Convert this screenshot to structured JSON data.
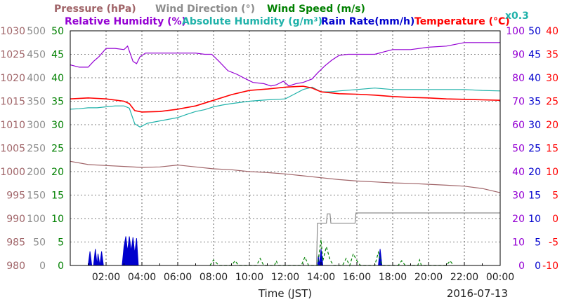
{
  "chart_data": {
    "type": "line",
    "date": "2016-07-13",
    "xlabel": "Time (JST)",
    "legend": {
      "row1": [
        {
          "key": "pressure",
          "label": "Pressure (hPa)",
          "color": "#a06468"
        },
        {
          "key": "wind_dir",
          "label": "Wind Direction (°)",
          "color": "#8c8c8c"
        },
        {
          "key": "wind_speed",
          "label": "Wind Speed (m/s)",
          "color": "#008000"
        }
      ],
      "row2": [
        {
          "key": "rh",
          "label": "Relative Humidity (%)",
          "color": "#9400d3"
        },
        {
          "key": "ah",
          "label": "Absolute Humidity (g/m³)",
          "color": "#20b2aa"
        },
        {
          "key": "rain",
          "label": "Rain Rate(mm/h)",
          "color": "#0000cd"
        },
        {
          "key": "temp",
          "label": "Temperature (°C)",
          "color": "#ff0000"
        },
        {
          "key": "factor",
          "label": "x0.3",
          "color": "#20b2aa"
        }
      ]
    },
    "x_ticks": [
      "02:00",
      "04:00",
      "06:00",
      "08:00",
      "10:00",
      "12:00",
      "14:00",
      "16:00",
      "18:00",
      "20:00",
      "22:00",
      "00:00"
    ],
    "xlim": [
      0,
      24
    ],
    "left_axes": [
      {
        "name": "pressure",
        "color": "#a06468",
        "ticks": [
          "1030",
          "1025",
          "1020",
          "1015",
          "1010",
          "1005",
          "1000",
          "995",
          "990",
          "985",
          "980"
        ]
      },
      {
        "name": "wind_dir",
        "color": "#8c8c8c",
        "ticks": [
          "500",
          "450",
          "400",
          "350",
          "300",
          "250",
          "200",
          "150",
          "100",
          "50",
          "0"
        ]
      },
      {
        "name": "wind_speed",
        "color": "#008000",
        "ticks": [
          "50",
          "45",
          "40",
          "35",
          "30",
          "25",
          "20",
          "15",
          "10",
          "5",
          "0"
        ]
      }
    ],
    "right_axes": [
      {
        "name": "rh",
        "color": "#9400d3",
        "ticks": [
          "100",
          "90",
          "80",
          "70",
          "60",
          "50",
          "40",
          "30",
          "20",
          "10",
          "0"
        ]
      },
      {
        "name": "rain_ah",
        "color": "#0000cd",
        "ticks": [
          "50",
          "45",
          "40",
          "35",
          "30",
          "25",
          "20",
          "15",
          "10",
          "5",
          "0"
        ]
      },
      {
        "name": "temp",
        "color": "#ff0000",
        "ticks": [
          "40",
          "35",
          "30",
          "25",
          "20",
          "15",
          "10",
          "5",
          "0",
          "-5",
          "-10"
        ]
      }
    ],
    "series": [
      {
        "name": "Pressure (hPa)",
        "key": "pressure",
        "color": "#a06468",
        "range": [
          980,
          1030
        ],
        "points": [
          [
            0,
            1002.2
          ],
          [
            1,
            1001.5
          ],
          [
            2,
            1001.3
          ],
          [
            3,
            1001.1
          ],
          [
            4,
            1000.9
          ],
          [
            5,
            1001.0
          ],
          [
            6,
            1001.4
          ],
          [
            7,
            1001.0
          ],
          [
            8,
            1000.6
          ],
          [
            9,
            1000.4
          ],
          [
            10,
            1000.0
          ],
          [
            11,
            999.8
          ],
          [
            12,
            999.5
          ],
          [
            13,
            999.1
          ],
          [
            14,
            998.7
          ],
          [
            15,
            998.3
          ],
          [
            16,
            998.0
          ],
          [
            17,
            997.8
          ],
          [
            18,
            997.6
          ],
          [
            19,
            997.5
          ],
          [
            20,
            997.3
          ],
          [
            21,
            997.1
          ],
          [
            22,
            996.9
          ],
          [
            23,
            996.4
          ],
          [
            24,
            995.5
          ]
        ]
      },
      {
        "name": "Wind Direction (°)",
        "key": "wind_dir",
        "color": "#8c8c8c",
        "range": [
          0,
          500
        ],
        "step": true,
        "points": [
          [
            13.75,
            0
          ],
          [
            13.8,
            90
          ],
          [
            14.3,
            90
          ],
          [
            14.35,
            110
          ],
          [
            14.5,
            110
          ],
          [
            14.55,
            90
          ],
          [
            15.9,
            90
          ],
          [
            15.95,
            112
          ],
          [
            24,
            112
          ]
        ]
      },
      {
        "name": "Wind Speed (m/s)",
        "key": "wind_speed",
        "color": "#008000",
        "range": [
          0,
          50
        ],
        "dashed": true,
        "points": [
          [
            7.8,
            0
          ],
          [
            8.0,
            1.2
          ],
          [
            8.3,
            0
          ],
          [
            9.0,
            0
          ],
          [
            9.2,
            1.0
          ],
          [
            9.4,
            0
          ],
          [
            10.4,
            0
          ],
          [
            10.6,
            1.5
          ],
          [
            10.8,
            0
          ],
          [
            11.4,
            0
          ],
          [
            11.5,
            1.0
          ],
          [
            11.6,
            0
          ],
          [
            12.9,
            0
          ],
          [
            13.1,
            1.8
          ],
          [
            13.3,
            0
          ],
          [
            13.8,
            0
          ],
          [
            14.0,
            5.5
          ],
          [
            14.1,
            1.0
          ],
          [
            14.3,
            4.0
          ],
          [
            14.5,
            1.2
          ],
          [
            14.7,
            0
          ],
          [
            15.2,
            0
          ],
          [
            15.4,
            1.5
          ],
          [
            15.6,
            0
          ],
          [
            15.8,
            2.5
          ],
          [
            16.0,
            1.0
          ],
          [
            16.2,
            0
          ],
          [
            17.0,
            0
          ],
          [
            17.2,
            2.8
          ],
          [
            17.4,
            0
          ],
          [
            18.3,
            0
          ],
          [
            18.5,
            1.0
          ],
          [
            18.7,
            0
          ],
          [
            19.4,
            0
          ],
          [
            19.5,
            1.2
          ],
          [
            19.6,
            0
          ],
          [
            21.0,
            0
          ],
          [
            21.2,
            1.0
          ],
          [
            21.4,
            0
          ]
        ]
      },
      {
        "name": "Relative Humidity (%)",
        "key": "rh",
        "color": "#9400d3",
        "range": [
          0,
          100
        ],
        "points": [
          [
            0,
            85.5
          ],
          [
            0.5,
            84.5
          ],
          [
            1,
            84.5
          ],
          [
            1.3,
            87
          ],
          [
            1.6,
            89
          ],
          [
            2.0,
            92.5
          ],
          [
            2.5,
            92.5
          ],
          [
            3.0,
            92
          ],
          [
            3.2,
            93.5
          ],
          [
            3.5,
            87
          ],
          [
            3.7,
            86
          ],
          [
            3.9,
            89
          ],
          [
            4.2,
            90.5
          ],
          [
            5,
            90.5
          ],
          [
            6,
            90.5
          ],
          [
            7,
            90.5
          ],
          [
            7.5,
            90
          ],
          [
            7.9,
            90
          ],
          [
            8.3,
            87
          ],
          [
            8.8,
            83
          ],
          [
            9.3,
            81.5
          ],
          [
            9.8,
            79.5
          ],
          [
            10.2,
            78
          ],
          [
            10.8,
            77.5
          ],
          [
            11.2,
            76.5
          ],
          [
            11.5,
            77
          ],
          [
            11.9,
            78.5
          ],
          [
            12.2,
            76.5
          ],
          [
            12.6,
            77.5
          ],
          [
            13.0,
            78
          ],
          [
            13.5,
            79.5
          ],
          [
            13.8,
            82
          ],
          [
            14.2,
            85
          ],
          [
            14.6,
            87.5
          ],
          [
            15.0,
            89.5
          ],
          [
            15.5,
            90
          ],
          [
            16,
            90
          ],
          [
            17,
            90
          ],
          [
            17.5,
            91
          ],
          [
            18,
            92
          ],
          [
            19,
            92
          ],
          [
            20,
            93
          ],
          [
            21,
            93.5
          ],
          [
            22,
            95
          ],
          [
            23,
            95
          ],
          [
            24,
            95
          ]
        ]
      },
      {
        "name": "Absolute Humidity (g/m³)",
        "key": "ah",
        "color": "#20b2aa",
        "range": [
          0,
          50
        ],
        "scale": 0.3,
        "points": [
          [
            0,
            33.3
          ],
          [
            0.5,
            33.4
          ],
          [
            1,
            33.6
          ],
          [
            1.5,
            33.6
          ],
          [
            2.0,
            33.8
          ],
          [
            2.5,
            34.0
          ],
          [
            3.0,
            34.0
          ],
          [
            3.3,
            33.5
          ],
          [
            3.6,
            30.2
          ],
          [
            3.9,
            29.5
          ],
          [
            4.3,
            30.3
          ],
          [
            5,
            30.8
          ],
          [
            6,
            31.5
          ],
          [
            6.5,
            32.2
          ],
          [
            7,
            32.8
          ],
          [
            7.5,
            33.2
          ],
          [
            8,
            33.8
          ],
          [
            8.5,
            34.2
          ],
          [
            9,
            34.5
          ],
          [
            10,
            35.0
          ],
          [
            11,
            35.3
          ],
          [
            12,
            35.5
          ],
          [
            12.5,
            36.5
          ],
          [
            13.0,
            37.5
          ],
          [
            13.5,
            38.0
          ],
          [
            14,
            37.0
          ],
          [
            14.5,
            37.0
          ],
          [
            15,
            37.2
          ],
          [
            16,
            37.5
          ],
          [
            17,
            37.8
          ],
          [
            18,
            37.5
          ],
          [
            19,
            37.5
          ],
          [
            20,
            37.5
          ],
          [
            21,
            37.5
          ],
          [
            22,
            37.5
          ],
          [
            23,
            37.3
          ],
          [
            24,
            37.2
          ]
        ]
      },
      {
        "name": "Rain Rate(mm/h)",
        "key": "rain",
        "color": "#0000cd",
        "range": [
          0,
          50
        ],
        "fill": true,
        "points": [
          [
            1.0,
            0
          ],
          [
            1.1,
            3
          ],
          [
            1.2,
            0
          ],
          [
            1.3,
            0
          ],
          [
            1.4,
            3.5
          ],
          [
            1.5,
            0
          ],
          [
            1.55,
            2.5
          ],
          [
            1.65,
            0
          ],
          [
            1.75,
            3
          ],
          [
            1.85,
            0
          ],
          [
            2.9,
            0
          ],
          [
            3.0,
            4
          ],
          [
            3.1,
            6.2
          ],
          [
            3.2,
            3
          ],
          [
            3.3,
            6.2
          ],
          [
            3.4,
            3
          ],
          [
            3.5,
            6
          ],
          [
            3.6,
            2.5
          ],
          [
            3.7,
            5.8
          ],
          [
            3.8,
            0
          ],
          [
            13.8,
            0
          ],
          [
            13.85,
            2
          ],
          [
            13.9,
            0
          ],
          [
            14.0,
            3.5
          ],
          [
            14.1,
            0
          ],
          [
            17.2,
            0
          ],
          [
            17.3,
            3.5
          ],
          [
            17.4,
            0
          ]
        ]
      },
      {
        "name": "Temperature (°C)",
        "key": "temp",
        "color": "#ff0000",
        "range": [
          -10,
          40
        ],
        "points": [
          [
            0,
            25.5
          ],
          [
            1,
            25.7
          ],
          [
            2,
            25.5
          ],
          [
            3,
            25.0
          ],
          [
            3.3,
            24.5
          ],
          [
            3.6,
            23.0
          ],
          [
            4.0,
            22.7
          ],
          [
            5,
            22.8
          ],
          [
            6,
            23.3
          ],
          [
            7,
            24.0
          ],
          [
            8,
            25.2
          ],
          [
            9,
            26.4
          ],
          [
            10,
            27.3
          ],
          [
            11,
            27.6
          ],
          [
            12,
            28.0
          ],
          [
            13,
            28.2
          ],
          [
            13.5,
            27.8
          ],
          [
            14,
            27.0
          ],
          [
            14.5,
            26.8
          ],
          [
            15,
            26.6
          ],
          [
            16,
            26.5
          ],
          [
            17,
            26.3
          ],
          [
            18,
            26.0
          ],
          [
            19,
            25.8
          ],
          [
            20,
            25.7
          ],
          [
            21,
            25.5
          ],
          [
            22,
            25.4
          ],
          [
            23,
            25.3
          ],
          [
            24,
            25.2
          ]
        ]
      }
    ]
  }
}
